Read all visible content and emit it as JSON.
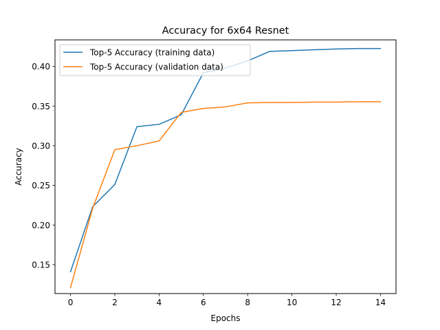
{
  "chart_data": {
    "type": "line",
    "title": "Accuracy for 6x64 Resnet",
    "xlabel": "Epochs",
    "ylabel": "Accuracy",
    "xlim": [
      -0.7,
      14.7
    ],
    "ylim": [
      0.1135,
      0.4335
    ],
    "xticks": [
      0,
      2,
      4,
      6,
      8,
      10,
      12,
      14
    ],
    "yticks": [
      0.15,
      0.2,
      0.25,
      0.3,
      0.35,
      0.4
    ],
    "ytick_labels": [
      "0.15",
      "0.20",
      "0.25",
      "0.30",
      "0.35",
      "0.40"
    ],
    "grid": false,
    "legend_position": "upper-left",
    "x": [
      0,
      1,
      2,
      3,
      4,
      5,
      6,
      7,
      8,
      9,
      10,
      11,
      12,
      13,
      14
    ],
    "series": [
      {
        "name": "Top-5 Accuracy (training data)",
        "color": "#1f77b4",
        "values": [
          0.141,
          0.223,
          0.251,
          0.324,
          0.327,
          0.339,
          0.392,
          0.398,
          0.407,
          0.419,
          0.42,
          0.421,
          0.422,
          0.4225,
          0.4225
        ]
      },
      {
        "name": "Top-5 Accuracy (validation data)",
        "color": "#ff7f0e",
        "values": [
          0.121,
          0.221,
          0.295,
          0.3,
          0.306,
          0.342,
          0.347,
          0.349,
          0.354,
          0.3545,
          0.3545,
          0.355,
          0.355,
          0.3555,
          0.3555
        ]
      }
    ]
  }
}
